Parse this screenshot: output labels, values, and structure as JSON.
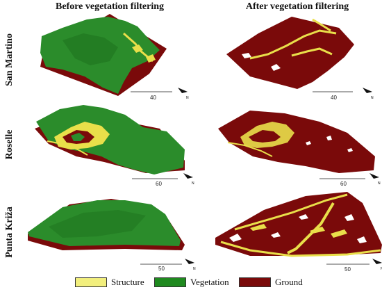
{
  "columns": {
    "before": "Before vegetation filtering",
    "after": "After vegetation filtering"
  },
  "rows": [
    {
      "name": "San Martino",
      "scale": "40"
    },
    {
      "name": "Roselle",
      "scale": "60"
    },
    {
      "name": "Punta Križa",
      "scale": "50"
    }
  ],
  "legend": {
    "structure": {
      "label": "Structure",
      "color": "#f2ef7d"
    },
    "vegetation": {
      "label": "Vegetation",
      "color": "#1f8a1f"
    },
    "ground": {
      "label": "Ground",
      "color": "#7a0a0a"
    }
  },
  "colors": {
    "ground": "#7a0a0a",
    "vegetation": "#2b8c2b",
    "vegetation_dark": "#1b6b1b",
    "structure": "#e9df4a",
    "white": "#ffffff"
  },
  "icons": {
    "north_arrow": "north-arrow-icon"
  }
}
